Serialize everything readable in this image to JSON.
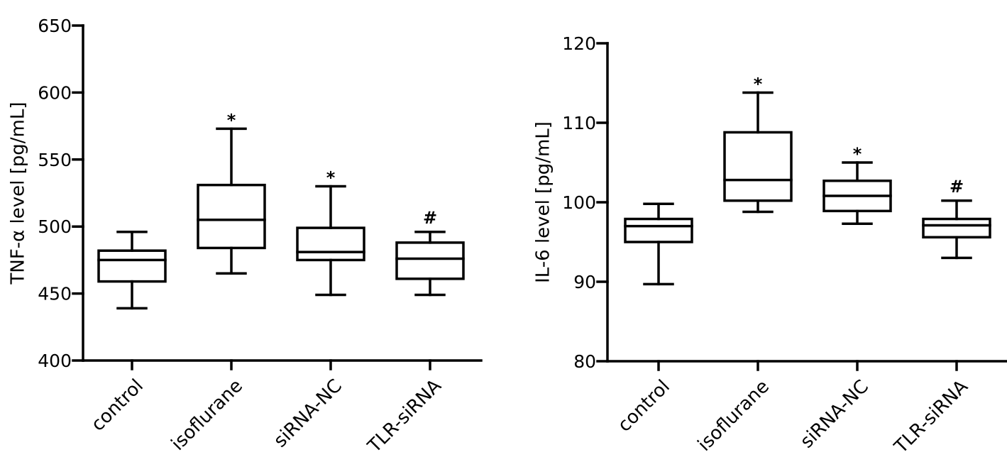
{
  "chart_data": [
    {
      "type": "box",
      "ylabel": "TNF-α level [pg/mL]",
      "ylim": [
        400,
        650
      ],
      "yticks": [
        400,
        450,
        500,
        550,
        600,
        650
      ],
      "categories": [
        "control",
        "isoflurane",
        "siRNA-NC",
        "TLR-siRNA"
      ],
      "boxes": [
        {
          "category": "control",
          "min": 439,
          "q1": 459,
          "median": 475,
          "q3": 482,
          "max": 496,
          "mark": ""
        },
        {
          "category": "isoflurane",
          "min": 465,
          "q1": 484,
          "median": 505,
          "q3": 531,
          "max": 573,
          "mark": "*"
        },
        {
          "category": "siRNA-NC",
          "min": 449,
          "q1": 475,
          "median": 481,
          "q3": 499,
          "max": 530,
          "mark": "*"
        },
        {
          "category": "TLR-siRNA",
          "min": 449,
          "q1": 461,
          "median": 476,
          "q3": 488,
          "max": 496,
          "mark": "#"
        }
      ],
      "grid": false
    },
    {
      "type": "box",
      "ylabel": "IL-6 level [pg/mL]",
      "ylim": [
        80,
        120
      ],
      "yticks": [
        80,
        90,
        100,
        110,
        120
      ],
      "categories": [
        "control",
        "isoflurane",
        "siRNA-NC",
        "TLR-siRNA"
      ],
      "boxes": [
        {
          "category": "control",
          "min": 89.7,
          "q1": 95.0,
          "median": 97.0,
          "q3": 97.9,
          "max": 99.8,
          "mark": ""
        },
        {
          "category": "isoflurane",
          "min": 98.8,
          "q1": 100.2,
          "median": 102.8,
          "q3": 108.8,
          "max": 113.8,
          "mark": "*"
        },
        {
          "category": "siRNA-NC",
          "min": 97.3,
          "q1": 98.9,
          "median": 100.8,
          "q3": 102.7,
          "max": 105.0,
          "mark": "*"
        },
        {
          "category": "TLR-siRNA",
          "min": 93.0,
          "q1": 95.6,
          "median": 97.1,
          "q3": 97.9,
          "max": 100.2,
          "mark": "#"
        }
      ],
      "grid": false
    }
  ]
}
